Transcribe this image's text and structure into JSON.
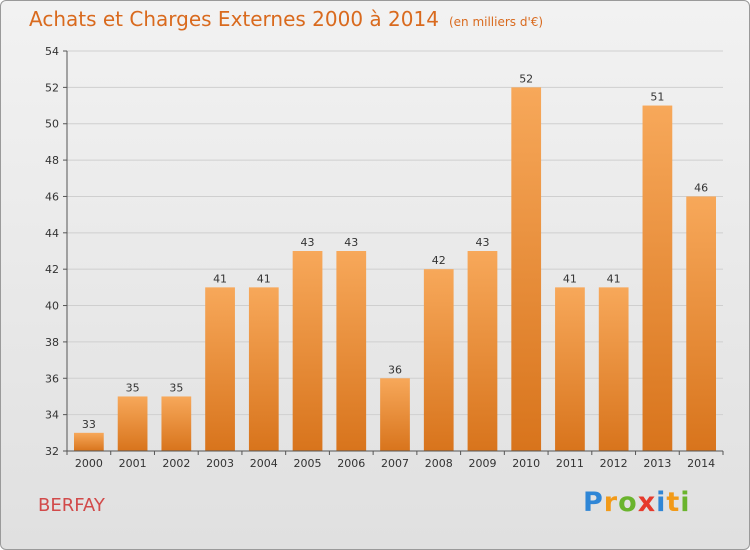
{
  "header": {
    "title": "Achats et Charges Externes 2000 à 2014",
    "unit": "(en milliers d'€)"
  },
  "footer": {
    "commune": "BERFAY",
    "logo": [
      "P",
      "r",
      "o",
      "x",
      "i",
      "t",
      "i"
    ]
  },
  "colors": {
    "title": "#d96a1e",
    "commune": "#d24a4a",
    "bar_top": "#f7a85a",
    "bar_bottom": "#d8741c",
    "grid": "#cfcfcf"
  },
  "chart_data": {
    "type": "bar",
    "title": "Achats et Charges Externes 2000 à 2014",
    "categories": [
      "2000",
      "2001",
      "2002",
      "2003",
      "2004",
      "2005",
      "2006",
      "2007",
      "2008",
      "2009",
      "2010",
      "2011",
      "2012",
      "2013",
      "2014"
    ],
    "values": [
      33,
      35,
      35,
      41,
      41,
      43,
      43,
      36,
      42,
      43,
      52,
      41,
      41,
      51,
      46
    ],
    "ylim": [
      32,
      54
    ],
    "yticks": [
      32,
      34,
      36,
      38,
      40,
      42,
      44,
      46,
      48,
      50,
      52,
      54
    ],
    "grid": true,
    "data_labels": true
  }
}
